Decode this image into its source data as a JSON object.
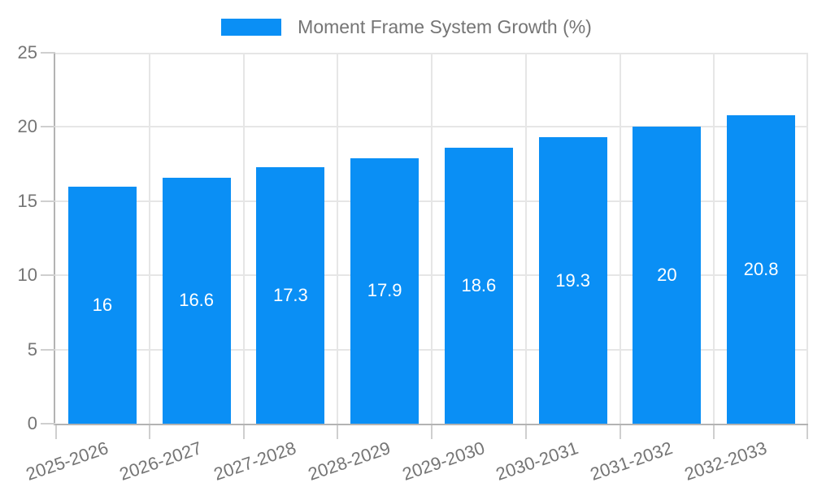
{
  "chart_data": {
    "type": "bar",
    "title": "",
    "legend": "Moment Frame System Growth (%)",
    "legend_position": "top-center",
    "categories": [
      "2025-2026",
      "2026-2027",
      "2027-2028",
      "2028-2029",
      "2029-2030",
      "2030-2031",
      "2031-2032",
      "2032-2033"
    ],
    "values": [
      16,
      16.6,
      17.3,
      17.9,
      18.6,
      19.3,
      20,
      20.8
    ],
    "bar_labels": [
      "16",
      "16.6",
      "17.3",
      "17.9",
      "18.6",
      "19.3",
      "20",
      "20.8"
    ],
    "xlabel": "",
    "ylabel": "",
    "ylim": [
      0,
      25
    ],
    "yticks": [
      0,
      5,
      10,
      15,
      20,
      25
    ],
    "ytick_labels": [
      "0",
      "5",
      "10",
      "15",
      "20",
      "25"
    ],
    "grid": true,
    "colors": {
      "bar": "#0a8ff5",
      "bar_label": "#ffffff",
      "axis_text": "#757575",
      "grid_line": "#e6e6e6",
      "axis_line": "#b3b3b3",
      "tick_mark": "#cfcfcf",
      "background": "#ffffff"
    }
  }
}
